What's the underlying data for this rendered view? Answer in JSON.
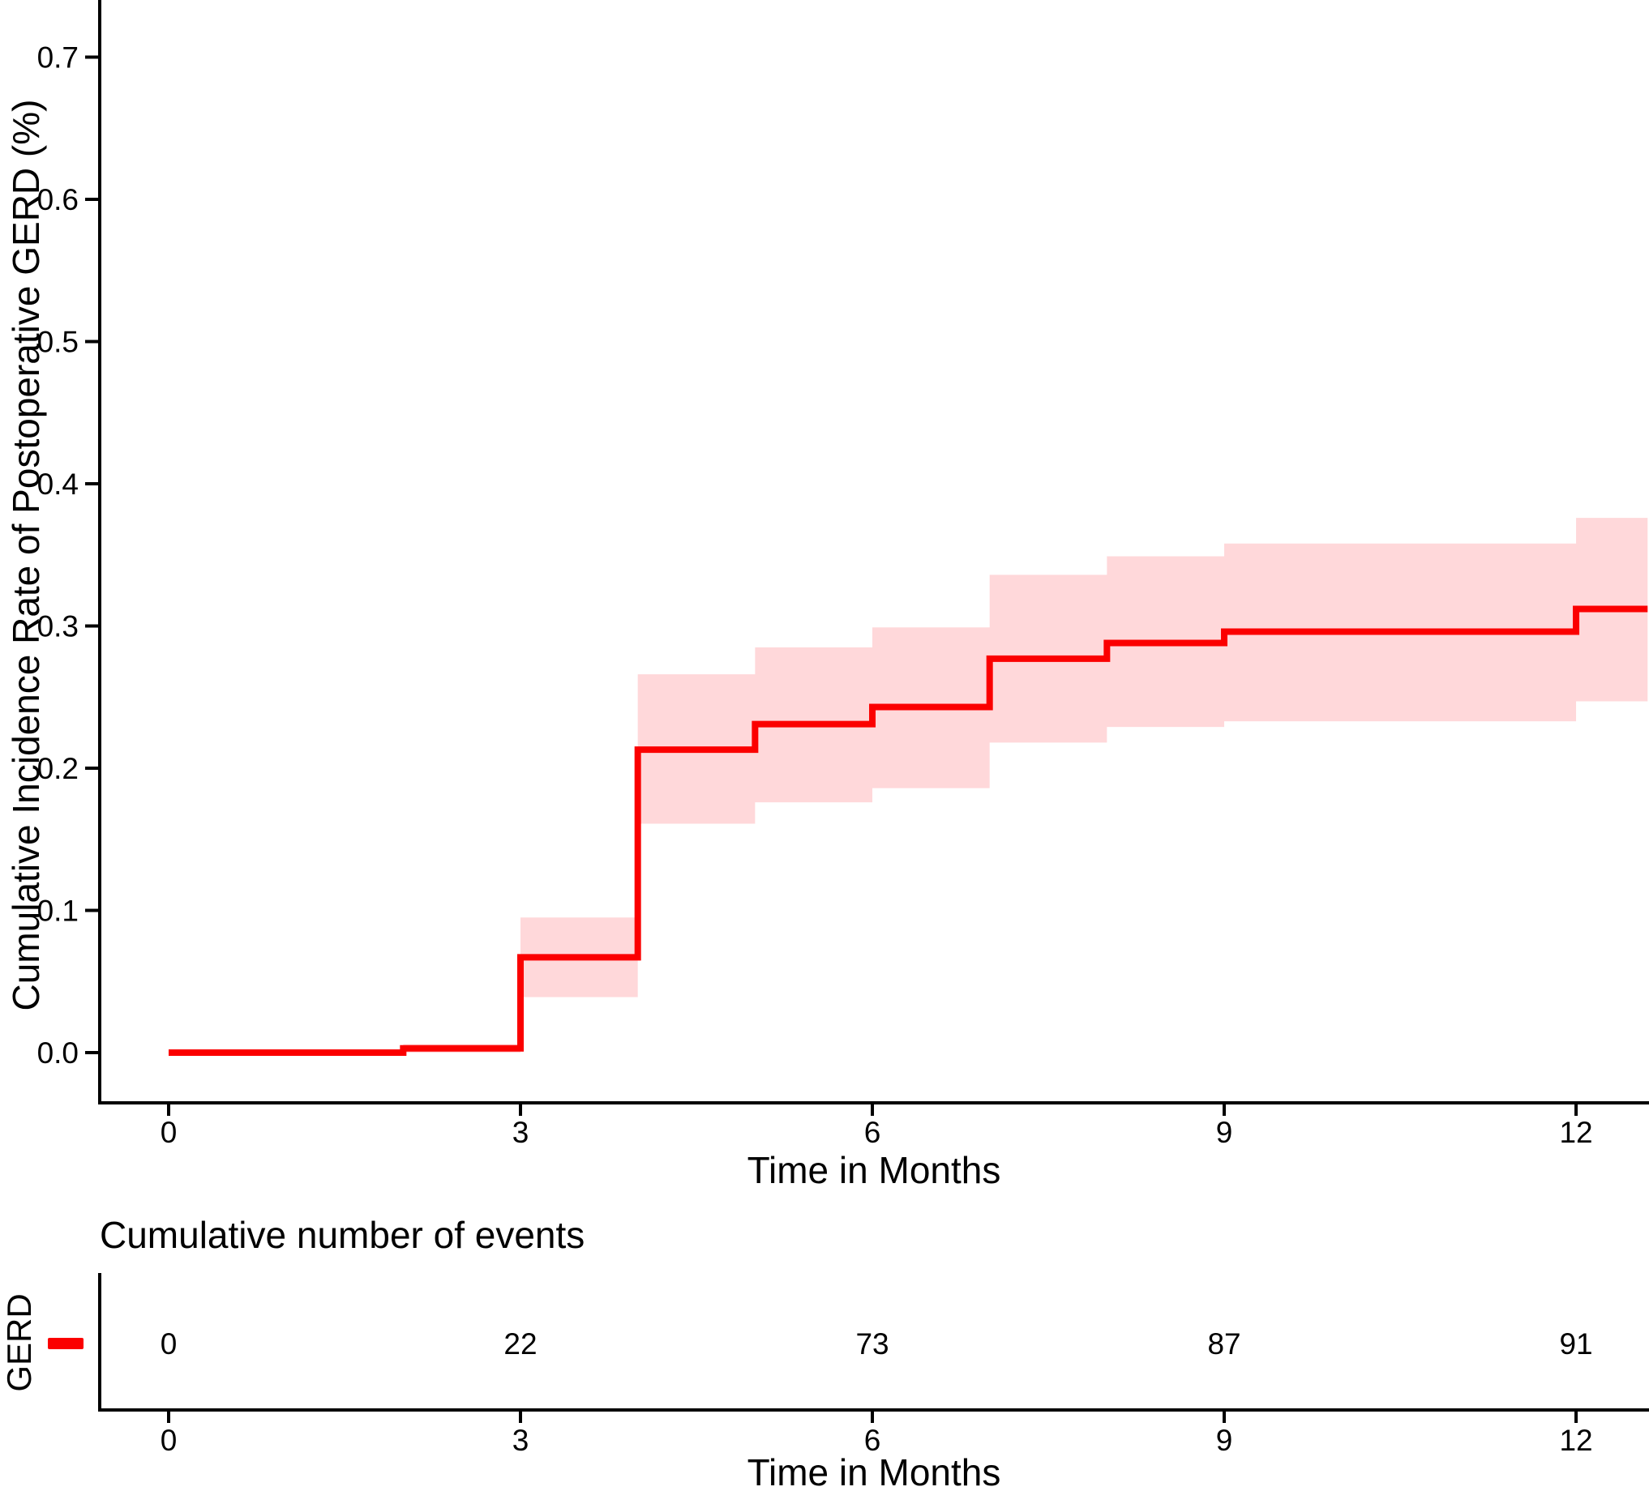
{
  "chart_data": {
    "type": "line",
    "subtype": "step-cumulative-incidence",
    "title": "",
    "xlabel": "Time in Months",
    "ylabel": "Cumulative Incidence Rate of Postoperative GERD (%)",
    "x_ticks": [
      0,
      3,
      6,
      9,
      12
    ],
    "y_ticks": [
      0.0,
      0.1,
      0.2,
      0.3,
      0.4,
      0.5,
      0.6,
      0.7
    ],
    "xlim": [
      0,
      12.61
    ],
    "ylim": [
      0,
      0.73
    ],
    "grid": false,
    "legend_position": "none",
    "series": [
      {
        "name": "GERD",
        "color": "#fb0000",
        "band_color": "#ffd8da",
        "segments": [
          {
            "t0": 0,
            "t1": 2,
            "est": 0.0,
            "lo": null,
            "hi": null
          },
          {
            "t0": 2,
            "t1": 3,
            "est": 0.003,
            "lo": 0.0,
            "hi": 0.006
          },
          {
            "t0": 3,
            "t1": 4,
            "est": 0.067,
            "lo": 0.039,
            "hi": 0.095
          },
          {
            "t0": 4,
            "t1": 5,
            "est": 0.213,
            "lo": 0.161,
            "hi": 0.266
          },
          {
            "t0": 5,
            "t1": 6,
            "est": 0.231,
            "lo": 0.176,
            "hi": 0.285
          },
          {
            "t0": 6,
            "t1": 7,
            "est": 0.243,
            "lo": 0.186,
            "hi": 0.299
          },
          {
            "t0": 7,
            "t1": 8,
            "est": 0.277,
            "lo": 0.218,
            "hi": 0.336
          },
          {
            "t0": 8,
            "t1": 9,
            "est": 0.288,
            "lo": 0.229,
            "hi": 0.349
          },
          {
            "t0": 9,
            "t1": 12,
            "est": 0.296,
            "lo": 0.233,
            "hi": 0.358
          },
          {
            "t0": 12,
            "t1": 12.61,
            "est": 0.312,
            "lo": 0.247,
            "hi": 0.376
          }
        ]
      }
    ]
  },
  "events_table": {
    "title": "Cumulative number of events",
    "row_label": "GERD",
    "xlabel": "Time in Months",
    "times": [
      0,
      3,
      6,
      9,
      12
    ],
    "counts": [
      "0",
      "22",
      "73",
      "87",
      "91"
    ]
  },
  "colors": {
    "line": "#fb0000",
    "band": "#ffd8da",
    "axis": "#000000",
    "text": "#000000",
    "background": "#ffffff"
  }
}
